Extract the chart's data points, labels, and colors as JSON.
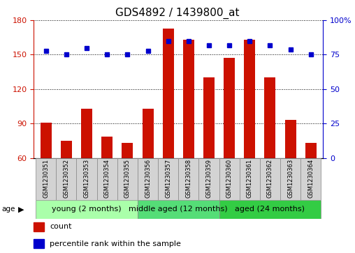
{
  "title": "GDS4892 / 1439800_at",
  "samples": [
    "GSM1230351",
    "GSM1230352",
    "GSM1230353",
    "GSM1230354",
    "GSM1230355",
    "GSM1230356",
    "GSM1230357",
    "GSM1230358",
    "GSM1230359",
    "GSM1230360",
    "GSM1230361",
    "GSM1230362",
    "GSM1230363",
    "GSM1230364"
  ],
  "counts": [
    91,
    75,
    103,
    79,
    73,
    103,
    173,
    163,
    130,
    147,
    163,
    130,
    93,
    73
  ],
  "percentiles": [
    78,
    75,
    80,
    75,
    75,
    78,
    85,
    85,
    82,
    82,
    85,
    82,
    79,
    75
  ],
  "ylim_left": [
    60,
    180
  ],
  "ylim_right": [
    0,
    100
  ],
  "yticks_left": [
    60,
    90,
    120,
    150,
    180
  ],
  "yticks_right": [
    0,
    25,
    50,
    75,
    100
  ],
  "groups": [
    {
      "label": "young (2 months)",
      "start": 0,
      "end": 5
    },
    {
      "label": "middle aged (12 months)",
      "start": 5,
      "end": 9
    },
    {
      "label": "aged (24 months)",
      "start": 9,
      "end": 14
    }
  ],
  "group_colors": [
    "#AAFFAA",
    "#55DD77",
    "#33CC44"
  ],
  "bar_color": "#CC1100",
  "dot_color": "#0000CC",
  "bg_color": "#FFFFFF",
  "left_axis_color": "#CC1100",
  "right_axis_color": "#0000CC",
  "legend_count_color": "#CC1100",
  "legend_pct_color": "#0000CC",
  "fontsize_title": 11,
  "fontsize_ticks": 8,
  "fontsize_sample": 6,
  "fontsize_legend": 8,
  "fontsize_group": 8
}
